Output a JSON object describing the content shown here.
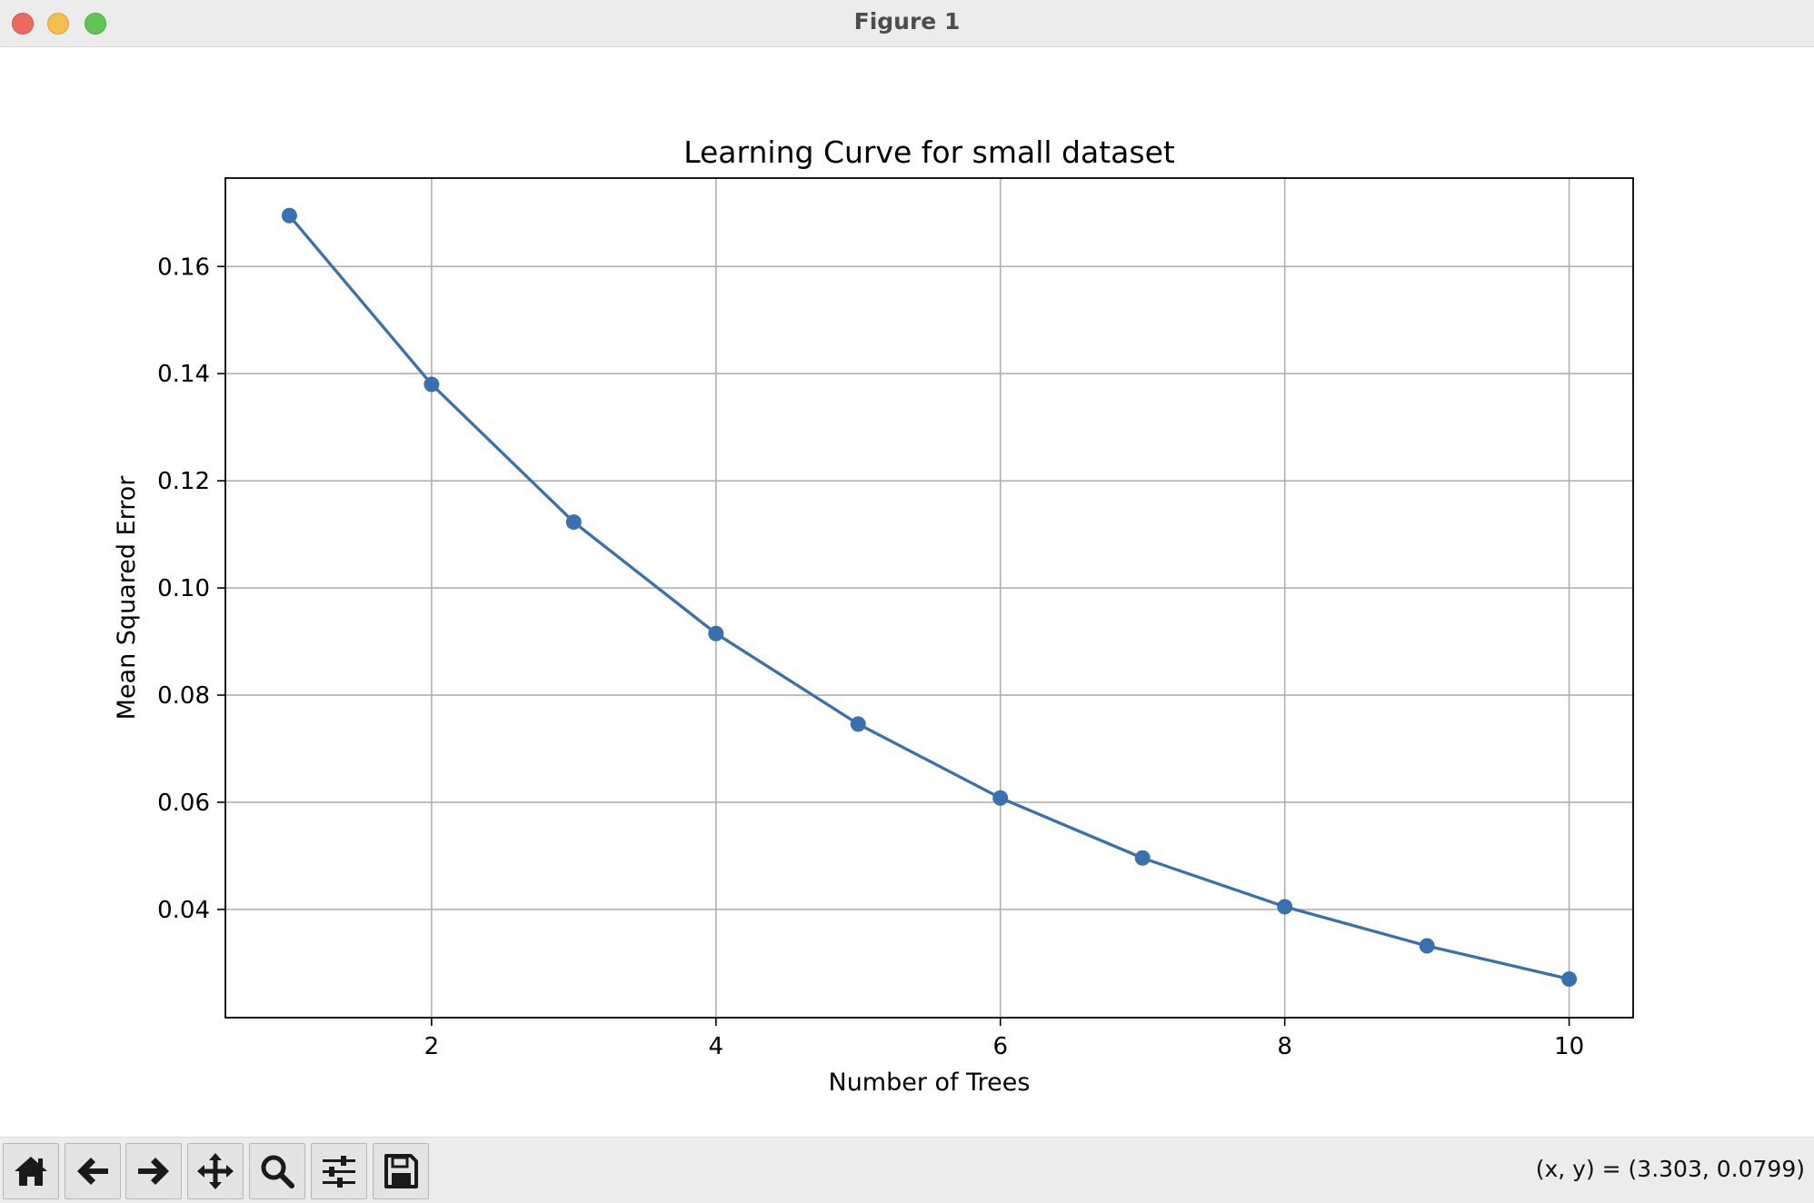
{
  "window": {
    "title": "Figure 1"
  },
  "toolbar": {
    "buttons": [
      {
        "name": "home-button",
        "icon": "home-icon"
      },
      {
        "name": "back-button",
        "icon": "arrow-left-icon"
      },
      {
        "name": "forward-button",
        "icon": "arrow-right-icon"
      },
      {
        "name": "pan-button",
        "icon": "move-icon"
      },
      {
        "name": "zoom-button",
        "icon": "search-icon"
      },
      {
        "name": "configure-subplots-button",
        "icon": "sliders-icon"
      },
      {
        "name": "save-button",
        "icon": "save-icon"
      }
    ],
    "coords": "(x, y) = (3.303, 0.0799)"
  },
  "chart_data": {
    "type": "line",
    "title": "Learning Curve for small dataset",
    "xlabel": "Number of Trees",
    "ylabel": "Mean Squared Error",
    "x": [
      1,
      2,
      3,
      4,
      5,
      6,
      7,
      8,
      9,
      10
    ],
    "series": [
      {
        "values": [
          0.1695,
          0.138,
          0.1123,
          0.0915,
          0.0746,
          0.0608,
          0.0496,
          0.0405,
          0.0332,
          0.027
        ],
        "color": "#3a70ae",
        "marker": "circle"
      }
    ],
    "xlim": [
      0.55,
      10.45
    ],
    "ylim": [
      0.0198,
      0.1765
    ],
    "xticks": [
      2,
      4,
      6,
      8,
      10
    ],
    "xtick_labels": [
      "2",
      "4",
      "6",
      "8",
      "10"
    ],
    "yticks": [
      0.04,
      0.06,
      0.08,
      0.1,
      0.12,
      0.14,
      0.16
    ],
    "ytick_labels": [
      "0.04",
      "0.06",
      "0.08",
      "0.10",
      "0.12",
      "0.14",
      "0.16"
    ],
    "grid": true
  }
}
